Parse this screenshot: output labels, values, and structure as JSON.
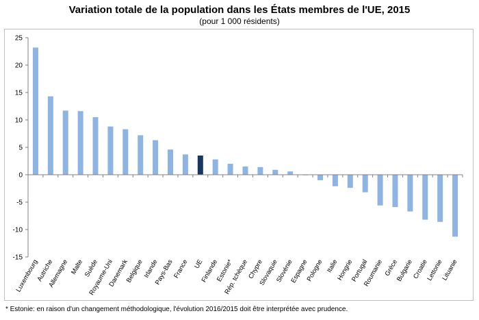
{
  "chart_data": {
    "type": "bar",
    "title": "Variation totale de la population dans les États membres de l'UE, 2015",
    "subtitle": "(pour 1 000 résidents)",
    "categories": [
      "Luxembourg",
      "Autriche",
      "Allemagne",
      "Malte",
      "Suède",
      "Royaume-Uni",
      "Danemark",
      "Belgique",
      "Irlande",
      "Pays-Bas",
      "France",
      "UE",
      "Finlande",
      "Estonie*",
      "Rép. tchèque",
      "Chypre",
      "Slovaquie",
      "Slovénie",
      "Espagne",
      "Pologne",
      "Italie",
      "Hongrie",
      "Portugal",
      "Roumanie",
      "Grèce",
      "Bulgarie",
      "Croatie",
      "Lettonie",
      "Lituanie"
    ],
    "values": [
      23.2,
      14.3,
      11.7,
      11.6,
      10.5,
      8.8,
      8.3,
      7.2,
      6.3,
      4.6,
      3.7,
      3.5,
      2.8,
      2.0,
      1.5,
      1.4,
      0.9,
      0.6,
      -0.1,
      -1.0,
      -2.1,
      -2.4,
      -3.2,
      -5.6,
      -5.9,
      -6.7,
      -8.2,
      -8.6,
      -11.3
    ],
    "highlight_category": "UE",
    "colors": {
      "bar": "#8eb4e3",
      "highlight": "#17375e",
      "grid": "#d9d9d9",
      "axis": "#808080"
    },
    "ylim": [
      -15,
      25
    ],
    "yticks": [
      25,
      20,
      15,
      10,
      5,
      0,
      -5,
      -10,
      -15
    ],
    "xlabel": "",
    "ylabel": "",
    "grid": false
  },
  "footnote": "* Estonie: en raison d'un changement méthodologique, l'évolution 2016/2015 doit être interprétée avec prudence."
}
